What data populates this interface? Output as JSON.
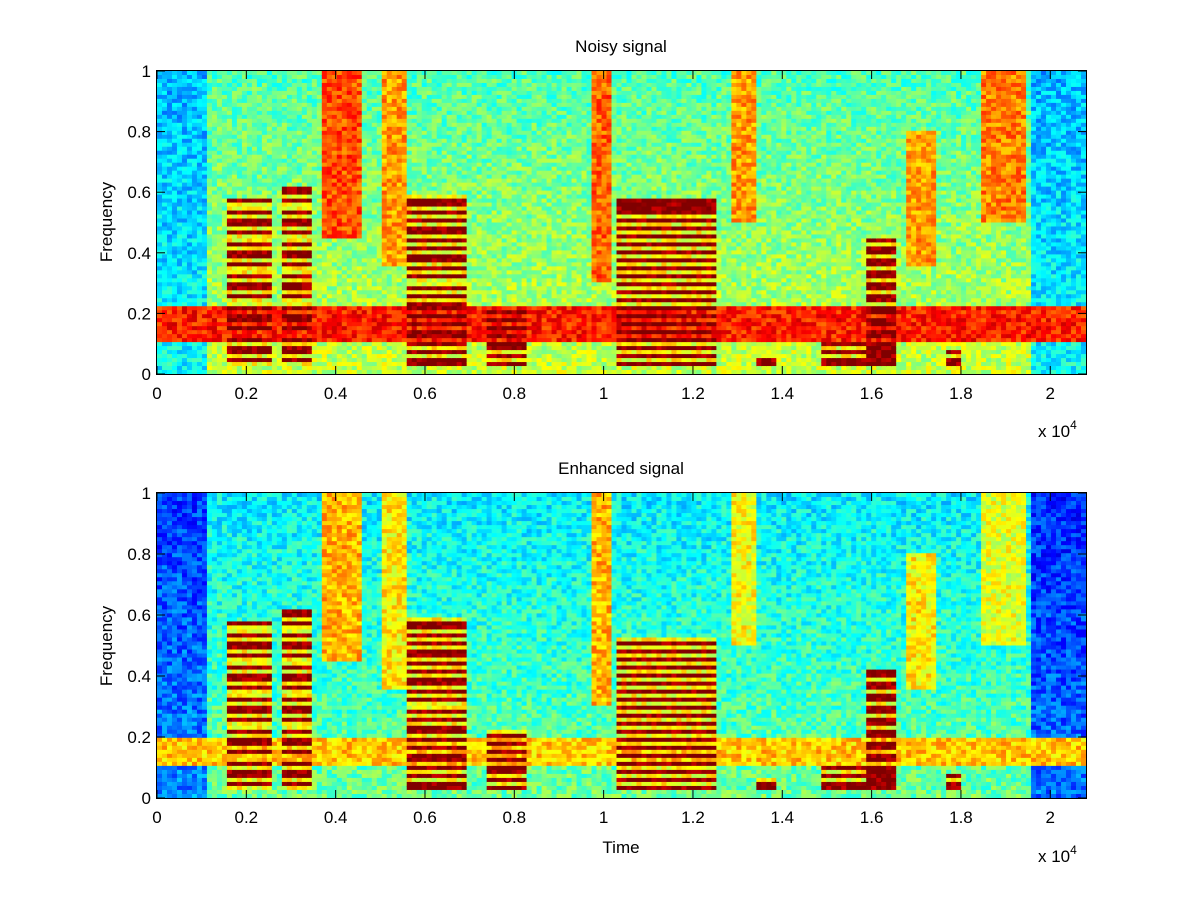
{
  "chart_data": [
    {
      "type": "heatmap",
      "title": "Noisy signal",
      "xlabel": "",
      "ylabel": "Frequency",
      "x_exponent_label": "x 10",
      "x_exponent": "4",
      "xlim": [
        0,
        20800
      ],
      "ylim": [
        0,
        1
      ],
      "x_ticks": [
        0,
        0.2,
        0.4,
        0.6,
        0.8,
        1,
        1.2,
        1.4,
        1.6,
        1.8,
        2
      ],
      "x_tick_labels": [
        "0",
        "0.2",
        "0.4",
        "0.6",
        "0.8",
        "1",
        "1.2",
        "1.4",
        "1.6",
        "1.8",
        "2"
      ],
      "y_ticks": [
        0,
        0.2,
        0.4,
        0.6,
        0.8,
        1
      ],
      "y_tick_labels": [
        "0",
        "0.2",
        "0.4",
        "0.6",
        "0.8",
        "1"
      ],
      "colormap": "jet",
      "noise_band": {
        "f_low": 0.1,
        "f_high": 0.23,
        "level": 0.85
      },
      "background_level": 0.45,
      "voiced_segments": [
        {
          "t_start": 0.16,
          "t_end": 0.26,
          "f_max": 0.58,
          "harmonic_step": 0.035
        },
        {
          "t_start": 0.28,
          "t_end": 0.35,
          "f_max": 0.62,
          "harmonic_step": 0.035
        },
        {
          "t_start": 0.56,
          "t_end": 0.69,
          "f_max": 0.59,
          "harmonic_step": 0.031
        },
        {
          "t_start": 0.74,
          "t_end": 0.83,
          "f_max": 0.22,
          "harmonic_step": 0.028
        },
        {
          "t_start": 1.03,
          "t_end": 1.25,
          "f_max": 0.58,
          "harmonic_step": 0.026
        },
        {
          "t_start": 1.34,
          "t_end": 1.39,
          "f_max": 0.06,
          "harmonic_step": 0.03
        },
        {
          "t_start": 1.49,
          "t_end": 1.66,
          "f_max": 0.11,
          "harmonic_step": 0.03
        },
        {
          "t_start": 1.59,
          "t_end": 1.65,
          "f_max": 0.45,
          "harmonic_step": 0.04
        },
        {
          "t_start": 1.77,
          "t_end": 1.8,
          "f_max": 0.08,
          "harmonic_step": 0.03
        }
      ],
      "fricative_segments": [
        {
          "t_start": 0.37,
          "t_end": 0.46,
          "f_min": 0.45,
          "f_max": 1.0,
          "level": 0.8
        },
        {
          "t_start": 0.5,
          "t_end": 0.56,
          "f_min": 0.35,
          "f_max": 1.0,
          "level": 0.72
        },
        {
          "t_start": 0.97,
          "t_end": 1.02,
          "f_min": 0.3,
          "f_max": 1.0,
          "level": 0.78
        },
        {
          "t_start": 1.29,
          "t_end": 1.34,
          "f_min": 0.5,
          "f_max": 1.0,
          "level": 0.72
        },
        {
          "t_start": 1.68,
          "t_end": 1.75,
          "f_min": 0.35,
          "f_max": 0.8,
          "level": 0.72
        },
        {
          "t_start": 1.84,
          "t_end": 1.95,
          "f_min": 0.5,
          "f_max": 1.0,
          "level": 0.75
        }
      ],
      "quiet_regions": [
        {
          "t_start": 0.0,
          "t_end": 0.11,
          "level": 0.3
        },
        {
          "t_start": 1.96,
          "t_end": 2.08,
          "level": 0.3
        }
      ]
    },
    {
      "type": "heatmap",
      "title": "Enhanced signal",
      "xlabel": "Time",
      "ylabel": "Frequency",
      "x_exponent_label": "x 10",
      "x_exponent": "4",
      "xlim": [
        0,
        20800
      ],
      "ylim": [
        0,
        1
      ],
      "x_ticks": [
        0,
        0.2,
        0.4,
        0.6,
        0.8,
        1,
        1.2,
        1.4,
        1.6,
        1.8,
        2
      ],
      "x_tick_labels": [
        "0",
        "0.2",
        "0.4",
        "0.6",
        "0.8",
        "1",
        "1.2",
        "1.4",
        "1.6",
        "1.8",
        "2"
      ],
      "y_ticks": [
        0,
        0.2,
        0.4,
        0.6,
        0.8,
        1
      ],
      "y_tick_labels": [
        "0",
        "0.2",
        "0.4",
        "0.6",
        "0.8",
        "1"
      ],
      "colormap": "jet",
      "noise_band": {
        "f_low": 0.11,
        "f_high": 0.2,
        "level": 0.68
      },
      "background_level": 0.36,
      "voiced_segments": [
        {
          "t_start": 0.16,
          "t_end": 0.26,
          "f_max": 0.58,
          "harmonic_step": 0.035
        },
        {
          "t_start": 0.28,
          "t_end": 0.35,
          "f_max": 0.62,
          "harmonic_step": 0.035
        },
        {
          "t_start": 0.56,
          "t_end": 0.69,
          "f_max": 0.59,
          "harmonic_step": 0.031
        },
        {
          "t_start": 0.74,
          "t_end": 0.83,
          "f_max": 0.22,
          "harmonic_step": 0.028
        },
        {
          "t_start": 1.03,
          "t_end": 1.25,
          "f_max": 0.52,
          "harmonic_step": 0.026
        },
        {
          "t_start": 1.34,
          "t_end": 1.39,
          "f_max": 0.06,
          "harmonic_step": 0.03
        },
        {
          "t_start": 1.49,
          "t_end": 1.66,
          "f_max": 0.1,
          "harmonic_step": 0.03
        },
        {
          "t_start": 1.59,
          "t_end": 1.65,
          "f_max": 0.42,
          "harmonic_step": 0.04
        },
        {
          "t_start": 1.77,
          "t_end": 1.8,
          "f_max": 0.08,
          "harmonic_step": 0.03
        }
      ],
      "fricative_segments": [
        {
          "t_start": 0.37,
          "t_end": 0.46,
          "f_min": 0.45,
          "f_max": 1.0,
          "level": 0.7
        },
        {
          "t_start": 0.5,
          "t_end": 0.56,
          "f_min": 0.35,
          "f_max": 1.0,
          "level": 0.64
        },
        {
          "t_start": 0.97,
          "t_end": 1.02,
          "f_min": 0.3,
          "f_max": 1.0,
          "level": 0.7
        },
        {
          "t_start": 1.29,
          "t_end": 1.34,
          "f_min": 0.5,
          "f_max": 1.0,
          "level": 0.62
        },
        {
          "t_start": 1.68,
          "t_end": 1.75,
          "f_min": 0.35,
          "f_max": 0.8,
          "level": 0.64
        },
        {
          "t_start": 1.84,
          "t_end": 1.95,
          "f_min": 0.5,
          "f_max": 1.0,
          "level": 0.6
        }
      ],
      "quiet_regions": [
        {
          "t_start": 0.0,
          "t_end": 0.11,
          "level": 0.18
        },
        {
          "t_start": 1.96,
          "t_end": 2.08,
          "level": 0.16
        }
      ]
    }
  ]
}
